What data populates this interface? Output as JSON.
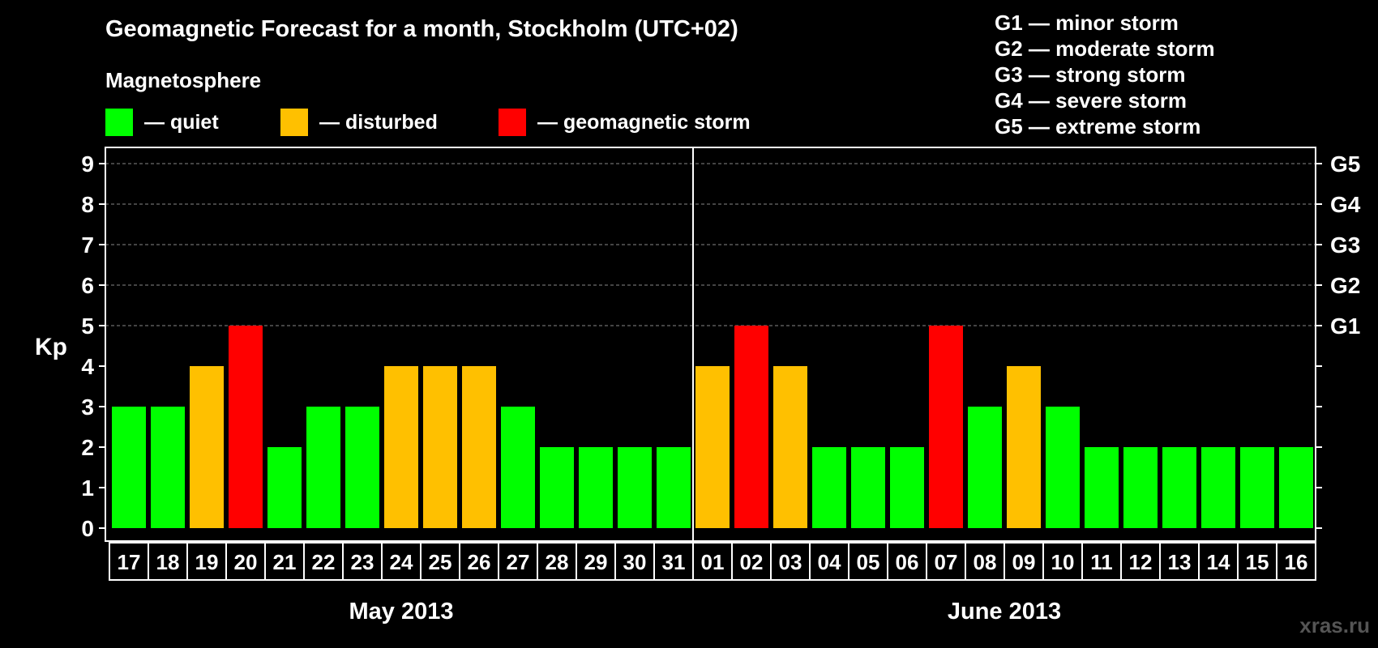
{
  "title": "Geomagnetic Forecast for a month, Stockholm (UTC+02)",
  "subtitle": "Magnetosphere",
  "legend": [
    {
      "label": "— quiet",
      "color": "#00ff00"
    },
    {
      "label": "— disturbed",
      "color": "#ffc000"
    },
    {
      "label": "— geomagnetic storm",
      "color": "#ff0000"
    }
  ],
  "storm_levels": [
    "G1 — minor storm",
    "G2 — moderate storm",
    "G3 — strong storm",
    "G4 — severe storm",
    "G5 — extreme storm"
  ],
  "watermark": "xras.ru",
  "colors": {
    "quiet": "#00ff00",
    "disturbed": "#ffc000",
    "storm": "#ff0000",
    "background": "#000000"
  },
  "chart_data": {
    "type": "bar",
    "ylabel": "Kp",
    "ylim": [
      0,
      9
    ],
    "yticks": [
      "0",
      "1",
      "2",
      "3",
      "4",
      "5",
      "6",
      "7",
      "8",
      "9"
    ],
    "right_axis": [
      {
        "kp": 5,
        "label": "G1"
      },
      {
        "kp": 6,
        "label": "G2"
      },
      {
        "kp": 7,
        "label": "G3"
      },
      {
        "kp": 8,
        "label": "G4"
      },
      {
        "kp": 9,
        "label": "G5"
      }
    ],
    "grid": "dashed horizontal",
    "months": [
      {
        "label": "May 2013",
        "days": 15
      },
      {
        "label": "June 2013",
        "days": 16
      }
    ],
    "categories": [
      "17",
      "18",
      "19",
      "20",
      "21",
      "22",
      "23",
      "24",
      "25",
      "26",
      "27",
      "28",
      "29",
      "30",
      "31",
      "01",
      "02",
      "03",
      "04",
      "05",
      "06",
      "07",
      "08",
      "09",
      "10",
      "11",
      "12",
      "13",
      "14",
      "15",
      "16"
    ],
    "values": [
      3,
      3,
      4,
      5,
      2,
      3,
      3,
      4,
      4,
      4,
      3,
      2,
      2,
      2,
      2,
      4,
      5,
      4,
      2,
      2,
      2,
      5,
      3,
      4,
      3,
      2,
      2,
      2,
      2,
      2,
      2
    ]
  }
}
